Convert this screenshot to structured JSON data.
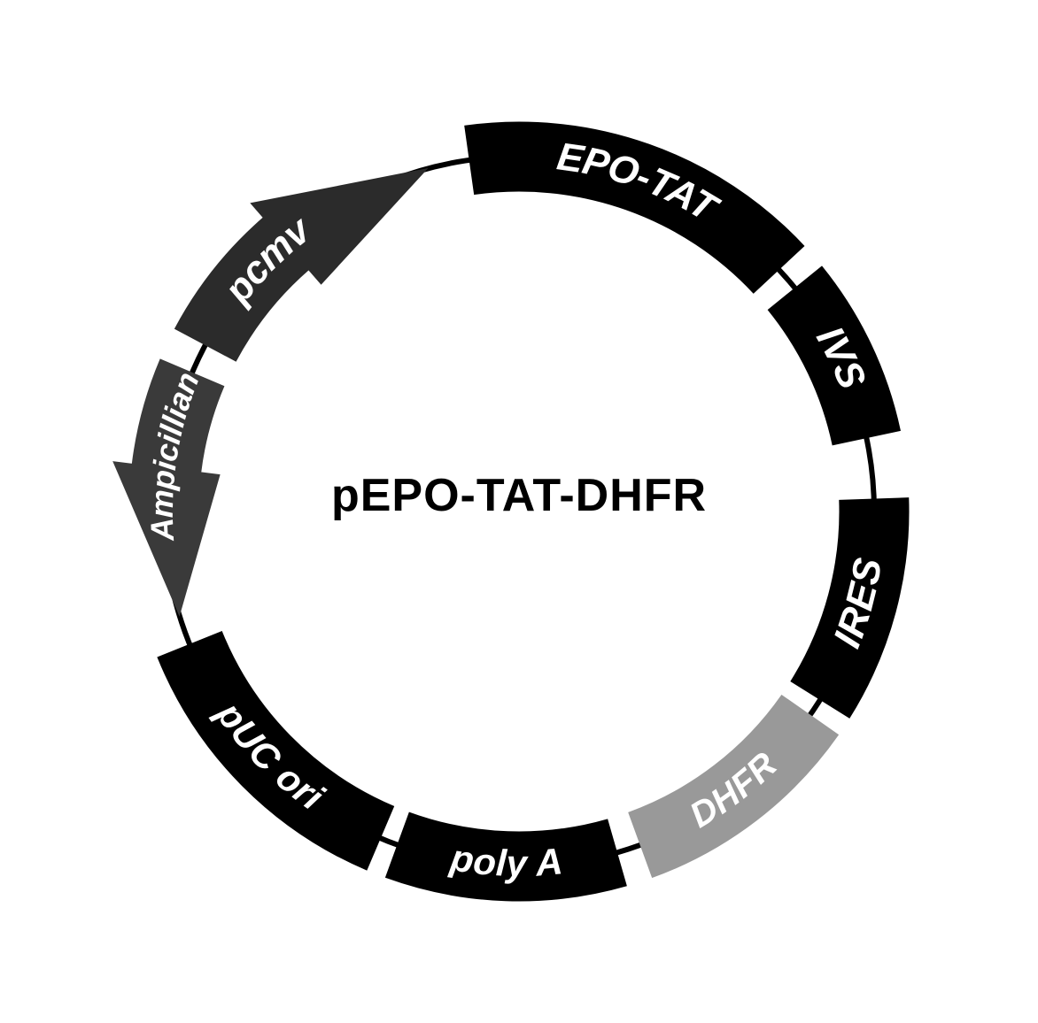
{
  "plasmid": {
    "name": "pEPO-TAT-DHFR",
    "center_label_fontsize": 52,
    "center_label_color": "#000000",
    "outer_radius": 440,
    "inner_radius": 362,
    "label_radius": 401,
    "ring_stroke_color": "#000000",
    "ring_stroke_width": 6,
    "background_color": "#ffffff",
    "segments": [
      {
        "id": "pcmv",
        "label": "pcmv",
        "start_angle": 298,
        "end_angle": 345,
        "fill": "#2b2b2b",
        "text_fill": "#ffffff",
        "fontsize": 44,
        "has_arrow": true,
        "arrow_direction": "cw",
        "arrow_length": 26
      },
      {
        "id": "epo-tat",
        "label": "EPO-TAT",
        "start_angle": 352,
        "end_angle": 47,
        "fill": "#000000",
        "text_fill": "#ffffff",
        "fontsize": 44,
        "has_arrow": false
      },
      {
        "id": "ivs",
        "label": "IVS",
        "start_angle": 51,
        "end_angle": 78,
        "fill": "#000000",
        "text_fill": "#ffffff",
        "fontsize": 44,
        "has_arrow": false
      },
      {
        "id": "ires",
        "label": "IRES",
        "start_angle": 88,
        "end_angle": 122,
        "fill": "#000000",
        "text_fill": "#ffffff",
        "fontsize": 44,
        "has_arrow": false
      },
      {
        "id": "dhfr",
        "label": "DHFR",
        "start_angle": 125,
        "end_angle": 160,
        "fill": "#999999",
        "text_fill": "#ffffff",
        "fontsize": 40,
        "has_arrow": false
      },
      {
        "id": "polya",
        "label": "poly A",
        "start_angle": 164,
        "end_angle": 200,
        "fill": "#000000",
        "text_fill": "#ffffff",
        "fontsize": 42,
        "has_arrow": false
      },
      {
        "id": "pucori",
        "label": "pUC ori",
        "start_angle": 203,
        "end_angle": 248,
        "fill": "#000000",
        "text_fill": "#ffffff",
        "fontsize": 42,
        "has_arrow": false
      },
      {
        "id": "ampicillin",
        "label": "Ampicillian",
        "start_angle": 253,
        "end_angle": 293,
        "fill": "#3a3a3a",
        "text_fill": "#ffffff",
        "fontsize": 36,
        "has_arrow": true,
        "arrow_direction": "ccw",
        "arrow_length": 24
      }
    ]
  }
}
